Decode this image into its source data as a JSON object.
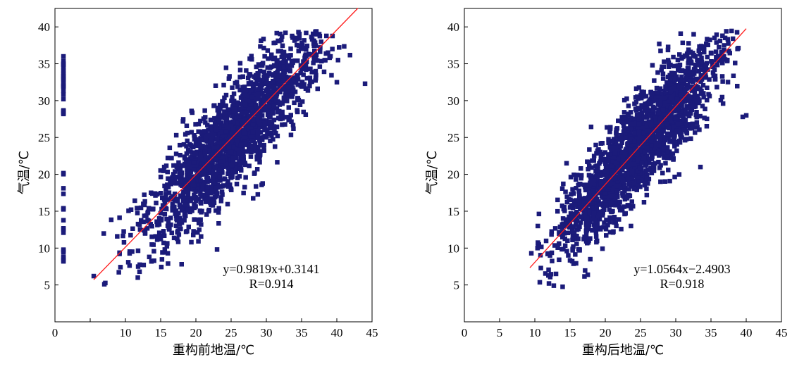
{
  "chart_data": [
    {
      "type": "scatter",
      "xlabel": "重构前地温/℃",
      "ylabel": "气温/℃",
      "xlim": [
        0,
        45
      ],
      "ylim": [
        0,
        42.5
      ],
      "xticks": [
        0,
        5,
        10,
        15,
        20,
        25,
        30,
        35,
        40,
        45
      ],
      "yticks": [
        5,
        10,
        15,
        20,
        25,
        30,
        35,
        40
      ],
      "x_tick_labels": [
        "0",
        "",
        "10",
        "15",
        "20",
        "25",
        "30",
        "35",
        "40",
        "45"
      ],
      "marker_color": "#1b1b7a",
      "fit_color": "#ff1a1a",
      "fit": {
        "slope": 0.9819,
        "intercept": 0.3141,
        "x_range": [
          5.5,
          43
        ]
      },
      "equation": "y=0.9819x+0.3141",
      "r_value": "R=0.914",
      "outlier_column": {
        "x": 1.2,
        "y_min": 8.2,
        "y_max": 36
      },
      "cloud": {
        "x_center": 25,
        "y_spread": 3.5
      },
      "sample_points": [
        {
          "x": 5.5,
          "y": 6.2
        },
        {
          "x": 7,
          "y": 5.1
        },
        {
          "x": 12,
          "y": 6.8
        },
        {
          "x": 44,
          "y": 32.3
        },
        {
          "x": 36.5,
          "y": 38.3
        },
        {
          "x": 37,
          "y": 39
        },
        {
          "x": 23,
          "y": 9.8
        },
        {
          "x": 15.5,
          "y": 21
        },
        {
          "x": 40,
          "y": 32.5
        }
      ]
    },
    {
      "type": "scatter",
      "xlabel": "重构后地温/℃",
      "ylabel": "气温/℃",
      "xlim": [
        0,
        45
      ],
      "ylim": [
        0,
        42.5
      ],
      "xticks": [
        0,
        5,
        10,
        15,
        20,
        25,
        30,
        35,
        40,
        45
      ],
      "yticks": [
        5,
        10,
        15,
        20,
        25,
        30,
        35,
        40
      ],
      "x_tick_labels": [
        "0",
        "5",
        "10",
        "15",
        "20",
        "25",
        "30",
        "35",
        "40",
        "45"
      ],
      "marker_color": "#1b1b7a",
      "fit_color": "#ff1a1a",
      "fit": {
        "slope": 1.0564,
        "intercept": -2.4903,
        "x_range": [
          9.3,
          40
        ]
      },
      "equation": "y=1.0564x−2.4903",
      "r_value": "R=0.918",
      "cloud": {
        "x_center": 25,
        "y_spread": 3.3
      },
      "sample_points": [
        {
          "x": 9.5,
          "y": 9.3
        },
        {
          "x": 12,
          "y": 5.2
        },
        {
          "x": 13,
          "y": 6.5
        },
        {
          "x": 40,
          "y": 28
        },
        {
          "x": 39.5,
          "y": 27.8
        },
        {
          "x": 35.5,
          "y": 38.5
        },
        {
          "x": 33.5,
          "y": 21
        },
        {
          "x": 14.5,
          "y": 21.5
        },
        {
          "x": 37,
          "y": 38.5
        }
      ]
    }
  ]
}
